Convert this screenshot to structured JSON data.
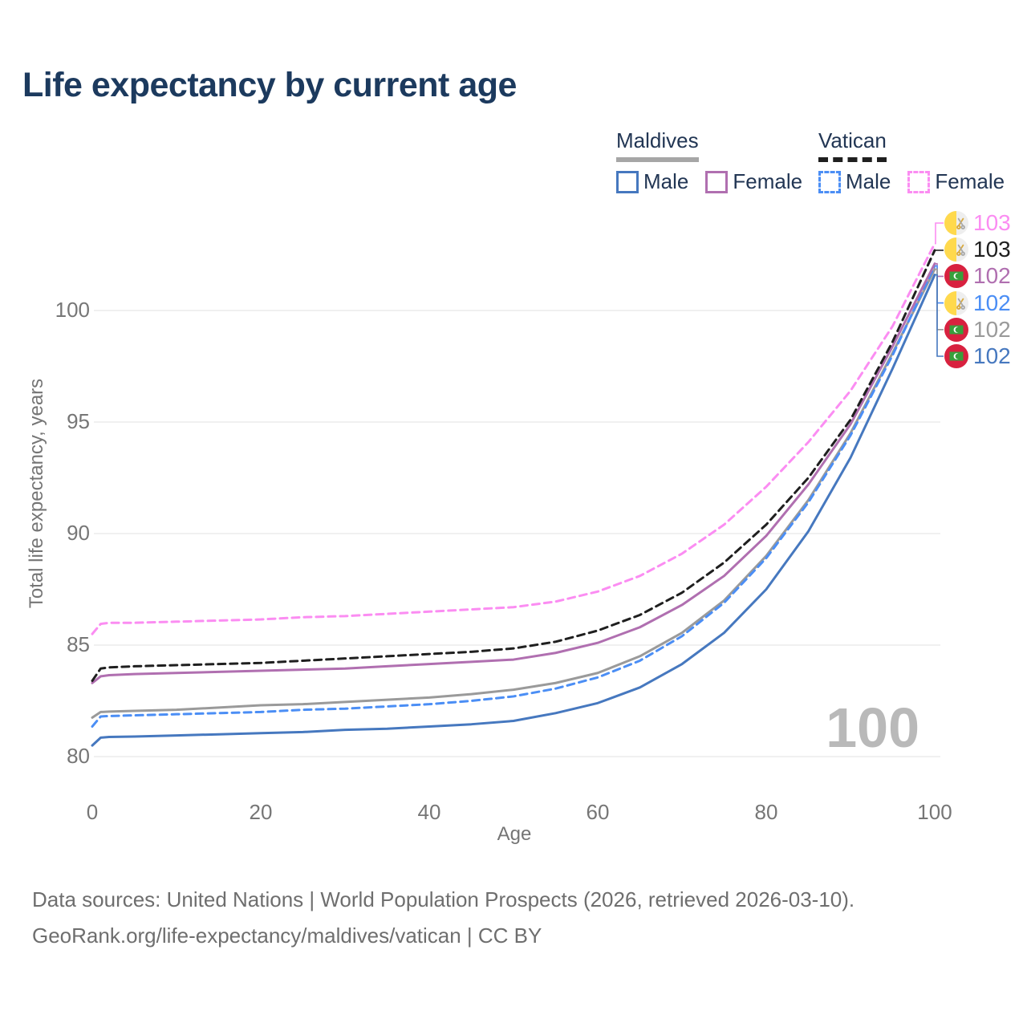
{
  "title": "Life expectancy by current age",
  "colors": {
    "title": "#1c3a5e",
    "legend_text": "#223654",
    "axis_text": "#757575",
    "grid": "#ececec",
    "watermark": "#b9b9b9",
    "footer_text": "#6e6e6e"
  },
  "legend": {
    "groups": [
      {
        "title": "Maldives",
        "underline_style": "solid",
        "underline_color": "#a6a6a6",
        "items": [
          {
            "label": "Male",
            "color": "#4678bf",
            "dash": "solid"
          },
          {
            "label": "Female",
            "color": "#b06fb0",
            "dash": "solid"
          }
        ]
      },
      {
        "title": "Vatican",
        "underline_style": "dashed",
        "underline_color": "#1f1f1f",
        "items": [
          {
            "label": "Male",
            "color": "#4b8ef5",
            "dash": "dashed"
          },
          {
            "label": "Female",
            "color": "#fb8df2",
            "dash": "dashed"
          }
        ]
      }
    ]
  },
  "chart_data": {
    "type": "line",
    "title": "Life expectancy by current age",
    "xlabel": "Age",
    "ylabel": "Total life expectancy, years",
    "xlim": [
      0,
      100
    ],
    "ylim": [
      79.5,
      103.5
    ],
    "x_ticks": [
      0,
      20,
      40,
      60,
      80,
      100
    ],
    "y_ticks": [
      80,
      85,
      90,
      95,
      100
    ],
    "grid": "horizontal",
    "legend_position": "top-right",
    "x": [
      0,
      1,
      2,
      5,
      10,
      15,
      20,
      25,
      30,
      35,
      40,
      45,
      50,
      55,
      60,
      65,
      70,
      75,
      80,
      85,
      90,
      95,
      100
    ],
    "series": [
      {
        "id": "vatican_female",
        "name": "Vatican Female",
        "color": "#fb8df2",
        "dash": "dashed",
        "flag": "vatican",
        "end_label": "103",
        "values": [
          85.5,
          85.95,
          86.0,
          86.0,
          86.05,
          86.1,
          86.15,
          86.25,
          86.3,
          86.4,
          86.5,
          86.6,
          86.7,
          86.95,
          87.4,
          88.1,
          89.1,
          90.4,
          92.1,
          94.1,
          96.4,
          99.3,
          103.0
        ]
      },
      {
        "id": "vatican_total",
        "name": "Vatican",
        "color": "#1f1f1f",
        "dash": "dashed",
        "flag": "vatican",
        "end_label": "103",
        "values": [
          83.4,
          83.95,
          84.0,
          84.05,
          84.1,
          84.15,
          84.2,
          84.3,
          84.4,
          84.5,
          84.6,
          84.7,
          84.85,
          85.15,
          85.65,
          86.35,
          87.35,
          88.7,
          90.4,
          92.5,
          95.1,
          98.6,
          102.7
        ]
      },
      {
        "id": "maldives_female",
        "name": "Maldives Female",
        "color": "#b06fb0",
        "dash": "solid",
        "flag": "maldives",
        "end_label": "102",
        "values": [
          83.3,
          83.6,
          83.65,
          83.7,
          83.75,
          83.8,
          83.85,
          83.9,
          83.95,
          84.05,
          84.15,
          84.25,
          84.35,
          84.65,
          85.1,
          85.8,
          86.8,
          88.1,
          89.9,
          92.2,
          94.9,
          98.4,
          102.1
        ]
      },
      {
        "id": "vatican_male",
        "name": "Vatican Male",
        "color": "#4b8ef5",
        "dash": "dashed",
        "flag": "vatican",
        "end_label": "102",
        "values": [
          81.35,
          81.8,
          81.82,
          81.85,
          81.9,
          81.95,
          82.0,
          82.1,
          82.15,
          82.25,
          82.35,
          82.5,
          82.7,
          83.05,
          83.55,
          84.3,
          85.4,
          86.9,
          88.9,
          91.4,
          94.4,
          98.0,
          102.0
        ]
      },
      {
        "id": "maldives_total",
        "name": "Maldives",
        "color": "#9a9a9a",
        "dash": "solid",
        "flag": "maldives",
        "end_label": "102",
        "values": [
          81.75,
          82.0,
          82.02,
          82.05,
          82.1,
          82.2,
          82.3,
          82.35,
          82.45,
          82.55,
          82.65,
          82.8,
          83.0,
          83.3,
          83.75,
          84.5,
          85.55,
          87.0,
          89.0,
          91.5,
          94.5,
          98.1,
          101.85
        ]
      },
      {
        "id": "maldives_male",
        "name": "Maldives Male",
        "color": "#4678bf",
        "dash": "solid",
        "flag": "maldives",
        "end_label": "102",
        "values": [
          80.5,
          80.85,
          80.88,
          80.9,
          80.95,
          81.0,
          81.05,
          81.1,
          81.2,
          81.25,
          81.35,
          81.45,
          81.6,
          81.95,
          82.4,
          83.1,
          84.15,
          85.55,
          87.5,
          90.1,
          93.4,
          97.4,
          101.6
        ]
      }
    ]
  },
  "watermark": "100",
  "footer": {
    "line1": "Data sources: United Nations | World Population Prospects (2026, retrieved 2026-03-10).",
    "line2": "GeoRank.org/life-expectancy/maldives/vatican | CC BY"
  }
}
